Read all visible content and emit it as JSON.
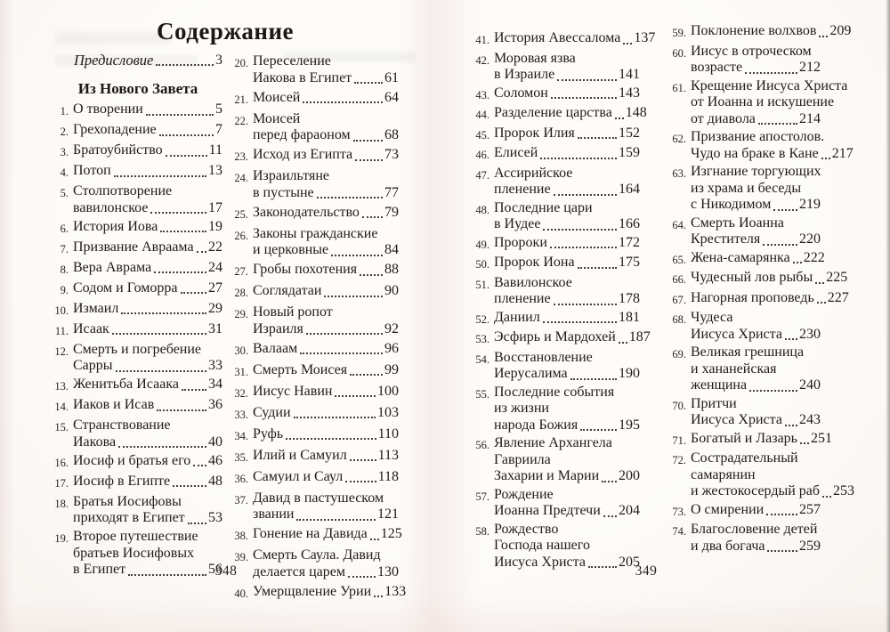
{
  "book": {
    "title": "Содержание",
    "section_heading": "Из Нового Завета",
    "preface": {
      "label": "Предисловие",
      "page": "3"
    },
    "left_page_number": "348",
    "right_page_number": "349",
    "columns": [
      {
        "entries": [
          {
            "num": "1.",
            "lines": [
              "О творении"
            ],
            "page": "5"
          },
          {
            "num": "2.",
            "lines": [
              "Грехопадение"
            ],
            "page": "7"
          },
          {
            "num": "3.",
            "lines": [
              "Братоубийство"
            ],
            "page": "11"
          },
          {
            "num": "4.",
            "lines": [
              "Потоп"
            ],
            "page": "13"
          },
          {
            "num": "5.",
            "lines": [
              "Столпотворение",
              "вавилонское"
            ],
            "page": "17"
          },
          {
            "num": "6.",
            "lines": [
              "История Иова"
            ],
            "page": "19"
          },
          {
            "num": "7.",
            "lines": [
              "Призвание Авраама"
            ],
            "page": "22"
          },
          {
            "num": "8.",
            "lines": [
              "Вера Аврама"
            ],
            "page": "24"
          },
          {
            "num": "9.",
            "lines": [
              "Содом и Гоморра"
            ],
            "page": "27"
          },
          {
            "num": "10.",
            "lines": [
              "Измаил"
            ],
            "page": "29"
          },
          {
            "num": "11.",
            "lines": [
              "Исаак"
            ],
            "page": "31"
          },
          {
            "num": "12.",
            "lines": [
              "Смерть и погребение",
              "Сарры"
            ],
            "page": "33"
          },
          {
            "num": "13.",
            "lines": [
              "Женитьба Исаака"
            ],
            "page": "34"
          },
          {
            "num": "14.",
            "lines": [
              "Иаков и Исав"
            ],
            "page": "36"
          },
          {
            "num": "15.",
            "lines": [
              "Странствование",
              "Иакова"
            ],
            "page": "40"
          },
          {
            "num": "16.",
            "lines": [
              "Иосиф и братья его"
            ],
            "page": "46"
          },
          {
            "num": "17.",
            "lines": [
              "Иосиф в Египте"
            ],
            "page": "48"
          },
          {
            "num": "18.",
            "lines": [
              "Братья Иосифовы",
              "приходят в Египет"
            ],
            "page": "53"
          },
          {
            "num": "19.",
            "lines": [
              "Второе путешествие",
              "братьев Иосифовых",
              "в Египет"
            ],
            "page": "56"
          }
        ]
      },
      {
        "entries": [
          {
            "num": "20.",
            "lines": [
              "Переселение",
              "Иакова в Египет"
            ],
            "page": "61"
          },
          {
            "num": "21.",
            "lines": [
              "Моисей"
            ],
            "page": "64"
          },
          {
            "num": "22.",
            "lines": [
              "Моисей",
              "перед фараоном"
            ],
            "page": "68"
          },
          {
            "num": "23.",
            "lines": [
              "Исход из Египта"
            ],
            "page": "73"
          },
          {
            "num": "24.",
            "lines": [
              "Израильтяне",
              "в пустыне"
            ],
            "page": "77"
          },
          {
            "num": "25.",
            "lines": [
              "Законодательство"
            ],
            "page": "79"
          },
          {
            "num": "26.",
            "lines": [
              "Законы гражданские",
              "и церковные"
            ],
            "page": "84"
          },
          {
            "num": "27.",
            "lines": [
              "Гробы похотения"
            ],
            "page": "88"
          },
          {
            "num": "28.",
            "lines": [
              "Соглядатаи"
            ],
            "page": "90"
          },
          {
            "num": "29.",
            "lines": [
              "Новый ропот",
              "Израиля"
            ],
            "page": "92"
          },
          {
            "num": "30.",
            "lines": [
              "Валаам"
            ],
            "page": "96"
          },
          {
            "num": "31.",
            "lines": [
              "Смерть Моисея"
            ],
            "page": "99"
          },
          {
            "num": "32.",
            "lines": [
              "Иисус Навин"
            ],
            "page": "100"
          },
          {
            "num": "33.",
            "lines": [
              "Судии"
            ],
            "page": "103"
          },
          {
            "num": "34.",
            "lines": [
              "Руфь"
            ],
            "page": "110"
          },
          {
            "num": "35.",
            "lines": [
              "Илий и Самуил"
            ],
            "page": "113"
          },
          {
            "num": "36.",
            "lines": [
              "Самуил и Саул"
            ],
            "page": "118"
          },
          {
            "num": "37.",
            "lines": [
              "Давид в пастушеском",
              "звании"
            ],
            "page": "121"
          },
          {
            "num": "38.",
            "lines": [
              "Гонение на Давида"
            ],
            "page": "125"
          },
          {
            "num": "39.",
            "lines": [
              "Смерть Саула. Давид",
              "делается царем"
            ],
            "page": "130"
          },
          {
            "num": "40.",
            "lines": [
              "Умерщвление Урии"
            ],
            "page": "133"
          }
        ]
      },
      {
        "entries": [
          {
            "num": "41.",
            "lines": [
              "История Авессалома"
            ],
            "page": "137"
          },
          {
            "num": "42.",
            "lines": [
              "Моровая язва",
              "в Израиле"
            ],
            "page": "141"
          },
          {
            "num": "43.",
            "lines": [
              "Соломон"
            ],
            "page": "143"
          },
          {
            "num": "44.",
            "lines": [
              "Разделение царства"
            ],
            "page": "148"
          },
          {
            "num": "45.",
            "lines": [
              "Пророк Илия"
            ],
            "page": "152"
          },
          {
            "num": "46.",
            "lines": [
              "Елисей"
            ],
            "page": "159"
          },
          {
            "num": "47.",
            "lines": [
              "Ассирийское",
              "пленение"
            ],
            "page": "164"
          },
          {
            "num": "48.",
            "lines": [
              "Последние цари",
              "в Иудее"
            ],
            "page": "166"
          },
          {
            "num": "49.",
            "lines": [
              "Пророки"
            ],
            "page": "172"
          },
          {
            "num": "50.",
            "lines": [
              "Пророк Иона"
            ],
            "page": "175"
          },
          {
            "num": "51.",
            "lines": [
              "Вавилонское",
              "пленение"
            ],
            "page": "178"
          },
          {
            "num": "52.",
            "lines": [
              "Даниил"
            ],
            "page": "181"
          },
          {
            "num": "53.",
            "lines": [
              "Эсфирь и Мардохей"
            ],
            "page": "187"
          },
          {
            "num": "54.",
            "lines": [
              "Восстановление",
              "Иерусалима"
            ],
            "page": "190"
          },
          {
            "num": "55.",
            "lines": [
              "Последние события",
              "из жизни",
              "народа Божия"
            ],
            "page": "195"
          },
          {
            "num": "56.",
            "lines": [
              "Явление Архангела",
              "Гавриила",
              "Захарии и Марии"
            ],
            "page": "200"
          },
          {
            "num": "57.",
            "lines": [
              "Рождение",
              "Иоанна Предтечи"
            ],
            "page": "204"
          },
          {
            "num": "58.",
            "lines": [
              "Рождество",
              "Господа нашего",
              "Иисуса Христа"
            ],
            "page": "205"
          }
        ]
      },
      {
        "entries": [
          {
            "num": "59.",
            "lines": [
              "Поклонение волхвов"
            ],
            "page": "209"
          },
          {
            "num": "60.",
            "lines": [
              "Иисус в отроческом",
              "возрасте"
            ],
            "page": "212"
          },
          {
            "num": "61.",
            "lines": [
              "Крещение Иисуса Христа",
              "от Иоанна и искушение",
              "от диавола"
            ],
            "page": "214"
          },
          {
            "num": "62.",
            "lines": [
              "Призвание апостолов.",
              "Чудо на браке в Кане"
            ],
            "page": "217"
          },
          {
            "num": "63.",
            "lines": [
              "Изгнание торгующих",
              "из храма и беседы",
              "с Никодимом"
            ],
            "page": "219"
          },
          {
            "num": "64.",
            "lines": [
              "Смерть Иоанна",
              "Крестителя"
            ],
            "page": "220"
          },
          {
            "num": "65.",
            "lines": [
              "Жена-самарянка"
            ],
            "page": "222"
          },
          {
            "num": "66.",
            "lines": [
              "Чудесный лов рыбы"
            ],
            "page": "225"
          },
          {
            "num": "67.",
            "lines": [
              "Нагорная проповедь"
            ],
            "page": "227"
          },
          {
            "num": "68.",
            "lines": [
              "Чудеса",
              "Иисуса Христа"
            ],
            "page": "230"
          },
          {
            "num": "69.",
            "lines": [
              "Великая грешница",
              "и хананейская",
              "женщина"
            ],
            "page": "240"
          },
          {
            "num": "70.",
            "lines": [
              "Притчи",
              "Иисуса Христа"
            ],
            "page": "243"
          },
          {
            "num": "71.",
            "lines": [
              "Богатый и Лазарь"
            ],
            "page": "251"
          },
          {
            "num": "72.",
            "lines": [
              "Сострадательный",
              "самарянин",
              "и жестокосердый раб"
            ],
            "page": "253"
          },
          {
            "num": "73.",
            "lines": [
              "О смирении"
            ],
            "page": "257"
          },
          {
            "num": "74.",
            "lines": [
              "Благословение детей",
              "и два богача"
            ],
            "page": "259"
          }
        ]
      }
    ]
  }
}
